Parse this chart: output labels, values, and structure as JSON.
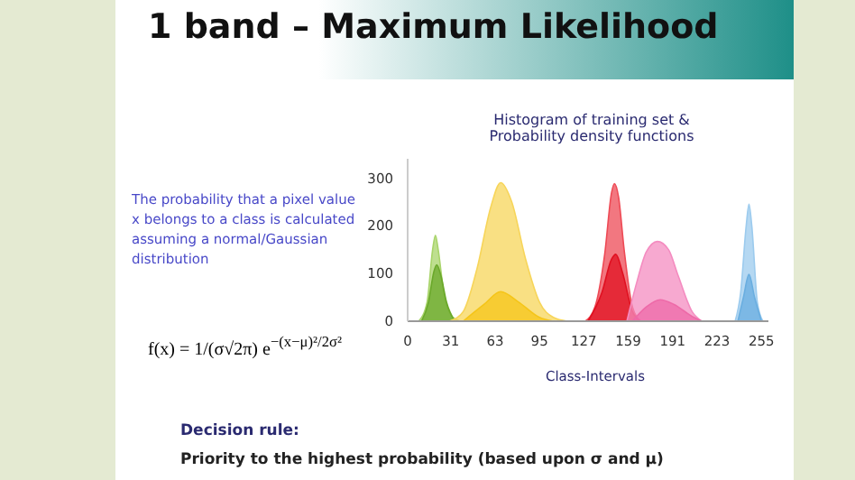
{
  "chart_data": {
    "type": "area",
    "title": "1 band – Maximum Likelihood",
    "subtitle": "Histogram of training set & Probability density functions",
    "xlabel": "Class-Intervals",
    "annotations": [
      "The probability that a pixel value x  belongs to a class is calculated assuming a normal/Gaussian distribution",
      "f(x) = 1/(σ√2π) e$^{−(x−μ)²/2σ²}$",
      "Decision rule:",
      "Priority to the highest probability (based upon σ and μ)"
    ],
    "series": [
      {
        "color": "#a8d46a",
        "x": [
          8,
          14,
          18,
          20,
          22,
          26,
          32,
          38
        ],
        "values": [
          0,
          40,
          150,
          180,
          150,
          60,
          10,
          0
        ]
      },
      {
        "color": "#6aa82a",
        "x": [
          10,
          15,
          19,
          21,
          24,
          28,
          34
        ],
        "values": [
          0,
          40,
          105,
          118,
          95,
          40,
          0
        ]
      },
      {
        "color": "#f7d55a",
        "x": [
          30,
          40,
          50,
          60,
          67,
          75,
          85,
          95,
          105,
          115
        ],
        "values": [
          0,
          20,
          110,
          240,
          290,
          250,
          130,
          40,
          8,
          0
        ]
      },
      {
        "color": "#f5c518",
        "x": [
          40,
          55,
          67,
          80,
          95,
          105
        ],
        "values": [
          0,
          35,
          62,
          40,
          8,
          0
        ]
      },
      {
        "color": "#ee4a55",
        "x": [
          128,
          135,
          142,
          147,
          149,
          152,
          156,
          162,
          168
        ],
        "values": [
          0,
          30,
          140,
          270,
          288,
          260,
          150,
          30,
          0
        ]
      },
      {
        "color": "#e01020",
        "x": [
          130,
          140,
          147,
          150,
          155,
          162,
          168
        ],
        "values": [
          0,
          60,
          130,
          140,
          100,
          20,
          0
        ]
      },
      {
        "color": "#f48cc0",
        "x": [
          158,
          165,
          172,
          180,
          188,
          195,
          205,
          212
        ],
        "values": [
          0,
          80,
          145,
          167,
          150,
          95,
          20,
          0
        ]
      },
      {
        "color": "#ee6aa8",
        "x": [
          162,
          172,
          182,
          192,
          205,
          212
        ],
        "values": [
          0,
          30,
          45,
          35,
          10,
          0
        ]
      },
      {
        "color": "#9ccbee",
        "x": [
          236,
          240,
          244,
          246,
          248,
          252,
          256
        ],
        "values": [
          0,
          60,
          200,
          245,
          200,
          40,
          0
        ]
      },
      {
        "color": "#6aaee0",
        "x": [
          238,
          242,
          246,
          250,
          255
        ],
        "values": [
          0,
          50,
          98,
          50,
          0
        ]
      }
    ],
    "xlim": [
      0,
      260
    ],
    "xticks": [
      0,
      31,
      63,
      95,
      127,
      159,
      191,
      223,
      255
    ],
    "ylim": [
      0,
      340
    ],
    "yticks": [
      0,
      100,
      200,
      300
    ],
    "grid": false
  }
}
